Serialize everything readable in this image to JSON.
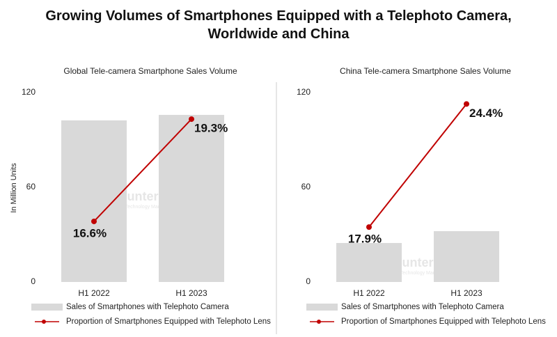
{
  "title": "Growing Volumes of Smartphones Equipped with a Telephoto Camera, Worldwide and China",
  "chart_data": [
    {
      "type": "bar",
      "title": "Global Tele-camera Smartphone Sales Volume",
      "ylabel": "In Million Units",
      "categories": [
        "H1 2022",
        "H1 2023"
      ],
      "series": [
        {
          "name": "Sales of Smartphones with Telephoto Camera",
          "color": "#d9d9d9",
          "values": [
            102.4,
            105.9
          ]
        },
        {
          "name": "Proportion of Smartphones Equipped with Telephoto Lens",
          "color": "#c00000",
          "type": "line",
          "axis": "y2",
          "values": [
            16.6,
            19.3
          ],
          "value_labels": [
            "16.6%",
            "19.3%"
          ]
        }
      ],
      "ylim": [
        0,
        120
      ],
      "yticks": [
        0,
        60,
        120
      ],
      "y2lim": [
        15,
        20
      ],
      "grid": false,
      "watermark": "Counterpoint",
      "watermark_subtitle": "Technology Market Research"
    },
    {
      "type": "bar",
      "title": "China Tele-camera Smartphone Sales Volume",
      "categories": [
        "H1 2022",
        "H1 2023"
      ],
      "series": [
        {
          "name": "Sales of Smartphones with Telephoto Camera",
          "color": "#d9d9d9",
          "values": [
            24.7,
            32.2
          ]
        },
        {
          "name": "Proportion of Smartphones Equipped with Telephoto Lens",
          "color": "#c00000",
          "type": "line",
          "axis": "y2",
          "values": [
            17.9,
            24.4
          ],
          "value_labels": [
            "17.9%",
            "24.4%"
          ]
        }
      ],
      "ylim": [
        0,
        120
      ],
      "yticks": [
        0,
        60,
        120
      ],
      "y2lim": [
        15,
        25
      ],
      "grid": false,
      "watermark": "Counterpoint",
      "watermark_subtitle": "Technology Market Research"
    }
  ]
}
